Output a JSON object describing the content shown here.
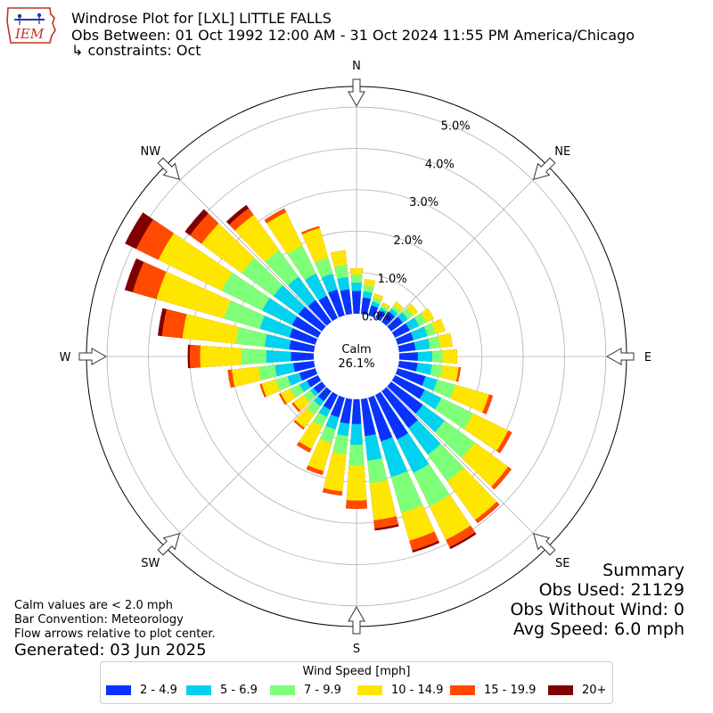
{
  "header": {
    "line1": "Windrose Plot for [LXL] LITTLE FALLS",
    "line2": "Obs Between: 01 Oct 1992 12:00 AM - 31 Oct 2024 11:55 PM America/Chicago",
    "line3": "↳ constraints: Oct"
  },
  "logo": {
    "text": "IEM",
    "icon": "iowa-state-outline-logo"
  },
  "summary": {
    "title": "Summary",
    "obs_used": "Obs Used: 21129",
    "obs_without_wind": "Obs Without Wind: 0",
    "avg_speed": "Avg Speed: 6.0 mph"
  },
  "notes": {
    "calm": "Calm values are < 2.0 mph",
    "bar": "Bar Convention: Meteorology",
    "flow": "Flow arrows relative to plot center.",
    "generated": "Generated: 03 Jun 2025"
  },
  "chart_data": {
    "type": "windrose",
    "center_label": "Calm",
    "calm_percent": "26.1%",
    "radial_ticks": [
      "0.0%",
      "1.0%",
      "2.0%",
      "3.0%",
      "4.0%",
      "5.0%"
    ],
    "radial_max": 5.5,
    "compass_labels": [
      {
        "label": "N",
        "deg": 0
      },
      {
        "label": "NE",
        "deg": 45
      },
      {
        "label": "E",
        "deg": 90
      },
      {
        "label": "SE",
        "deg": 135
      },
      {
        "label": "S",
        "deg": 180
      },
      {
        "label": "SW",
        "deg": 225
      },
      {
        "label": "W",
        "deg": 270
      },
      {
        "label": "NW",
        "deg": 315
      }
    ],
    "legend_title": "Wind Speed [mph]",
    "bins": [
      {
        "label": "2 - 4.9",
        "color": "#0a32ff"
      },
      {
        "label": "5 - 6.9",
        "color": "#00d2f0"
      },
      {
        "label": "7 - 9.9",
        "color": "#7dff7a"
      },
      {
        "label": "10 - 14.9",
        "color": "#ffe600"
      },
      {
        "label": "15 - 19.9",
        "color": "#ff4a00"
      },
      {
        "label": "20+",
        "color": "#800000"
      }
    ],
    "directions": [
      0,
      10,
      20,
      30,
      40,
      50,
      60,
      70,
      80,
      90,
      100,
      110,
      120,
      130,
      140,
      150,
      160,
      170,
      180,
      190,
      200,
      210,
      220,
      230,
      240,
      250,
      260,
      270,
      280,
      290,
      300,
      310,
      320,
      330,
      340,
      350
    ],
    "cumulative_percent": [
      [
        0.55,
        0.75,
        0.95,
        1.1,
        1.1,
        1.1
      ],
      [
        0.4,
        0.55,
        0.7,
        0.85,
        0.85,
        0.85
      ],
      [
        0.25,
        0.35,
        0.45,
        0.55,
        0.55,
        0.55
      ],
      [
        0.2,
        0.28,
        0.35,
        0.42,
        0.42,
        0.42
      ],
      [
        0.3,
        0.4,
        0.5,
        0.6,
        0.6,
        0.6
      ],
      [
        0.35,
        0.5,
        0.65,
        0.8,
        0.8,
        0.8
      ],
      [
        0.4,
        0.65,
        0.85,
        1.05,
        1.05,
        1.05
      ],
      [
        0.4,
        0.75,
        0.95,
        1.2,
        1.2,
        1.2
      ],
      [
        0.4,
        0.75,
        1.0,
        1.3,
        1.3,
        1.3
      ],
      [
        0.45,
        0.8,
        1.05,
        1.4,
        1.4,
        1.4
      ],
      [
        0.45,
        0.8,
        1.05,
        1.45,
        1.5,
        1.5
      ],
      [
        0.7,
        1.0,
        1.45,
        2.3,
        2.4,
        2.4
      ],
      [
        0.8,
        1.25,
        2.1,
        3.05,
        3.15,
        3.15
      ],
      [
        0.95,
        1.6,
        2.5,
        3.5,
        3.6,
        3.6
      ],
      [
        1.1,
        1.9,
        2.7,
        3.85,
        3.95,
        3.95
      ],
      [
        1.2,
        2.1,
        3.0,
        3.9,
        4.1,
        4.15
      ],
      [
        1.1,
        2.0,
        2.9,
        3.6,
        3.85,
        3.9
      ],
      [
        0.9,
        1.5,
        2.05,
        2.95,
        3.15,
        3.2
      ],
      [
        0.6,
        1.1,
        1.6,
        2.45,
        2.65,
        2.65
      ],
      [
        0.6,
        0.9,
        1.35,
        2.25,
        2.35,
        2.35
      ],
      [
        0.5,
        0.8,
        1.15,
        1.85,
        1.95,
        1.95
      ],
      [
        0.4,
        0.6,
        0.85,
        1.45,
        1.55,
        1.55
      ],
      [
        0.3,
        0.45,
        0.7,
        1.1,
        1.15,
        1.15
      ],
      [
        0.25,
        0.35,
        0.55,
        0.85,
        0.9,
        0.9
      ],
      [
        0.3,
        0.5,
        0.75,
        1.0,
        1.05,
        1.05
      ],
      [
        0.4,
        0.7,
        1.0,
        1.35,
        1.4,
        1.4
      ],
      [
        0.5,
        0.95,
        1.35,
        2.0,
        2.1,
        2.1
      ],
      [
        0.55,
        1.15,
        1.75,
        2.75,
        3.0,
        3.05
      ],
      [
        0.6,
        1.2,
        1.9,
        3.2,
        3.7,
        3.8
      ],
      [
        0.65,
        1.4,
        2.3,
        4.0,
        4.6,
        4.8
      ],
      [
        0.7,
        1.5,
        2.6,
        4.3,
        4.9,
        5.2
      ],
      [
        0.7,
        1.45,
        2.4,
        3.6,
        3.95,
        4.1
      ],
      [
        0.65,
        1.35,
        2.15,
        3.2,
        3.4,
        3.5
      ],
      [
        0.6,
        1.2,
        1.95,
        2.85,
        2.95,
        2.95
      ],
      [
        0.65,
        1.05,
        1.45,
        2.2,
        2.25,
        2.25
      ],
      [
        0.6,
        0.9,
        1.2,
        1.55,
        1.55,
        1.55
      ]
    ]
  }
}
